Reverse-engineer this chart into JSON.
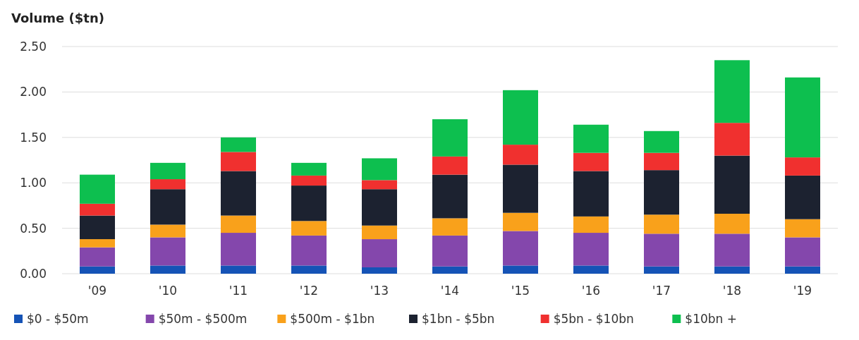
{
  "chart_data": {
    "type": "bar",
    "stacked": true,
    "ylabel": "Volume ($tn)",
    "categories": [
      "'09",
      "'10",
      "'11",
      "'12",
      "'13",
      "'14",
      "'15",
      "'16",
      "'17",
      "'18",
      "'19"
    ],
    "series": [
      {
        "name": "$0 - $50m",
        "color": "#1553b6",
        "values": [
          0.08,
          0.09,
          0.09,
          0.09,
          0.07,
          0.08,
          0.09,
          0.09,
          0.08,
          0.08,
          0.08
        ]
      },
      {
        "name": "$50m - $500m",
        "color": "#8447ac",
        "values": [
          0.21,
          0.31,
          0.36,
          0.33,
          0.31,
          0.34,
          0.38,
          0.36,
          0.36,
          0.36,
          0.32
        ]
      },
      {
        "name": "$500m - $1bn",
        "color": "#f9a11b",
        "values": [
          0.09,
          0.14,
          0.19,
          0.16,
          0.15,
          0.19,
          0.2,
          0.18,
          0.21,
          0.22,
          0.2
        ]
      },
      {
        "name": "$1bn - $5bn",
        "color": "#1c2230",
        "values": [
          0.26,
          0.39,
          0.49,
          0.39,
          0.4,
          0.48,
          0.53,
          0.5,
          0.49,
          0.64,
          0.48
        ]
      },
      {
        "name": "$5bn - $10bn",
        "color": "#f0302f",
        "values": [
          0.13,
          0.11,
          0.21,
          0.11,
          0.1,
          0.2,
          0.22,
          0.2,
          0.19,
          0.36,
          0.2
        ]
      },
      {
        "name": "$10bn +",
        "color": "#0dbf4f",
        "values": [
          0.32,
          0.18,
          0.16,
          0.14,
          0.24,
          0.41,
          0.6,
          0.31,
          0.24,
          0.69,
          0.88
        ]
      }
    ],
    "ylim": [
      0,
      2.5
    ],
    "yticks": [
      {
        "value": 0,
        "label": "0.00"
      },
      {
        "value": 0.5,
        "label": "0.50"
      },
      {
        "value": 1,
        "label": "1.00"
      },
      {
        "value": 1.5,
        "label": "1.50"
      },
      {
        "value": 2,
        "label": "2.00"
      },
      {
        "value": 2.5,
        "label": "2.50"
      }
    ],
    "grid": "y",
    "legend": "bottom"
  }
}
